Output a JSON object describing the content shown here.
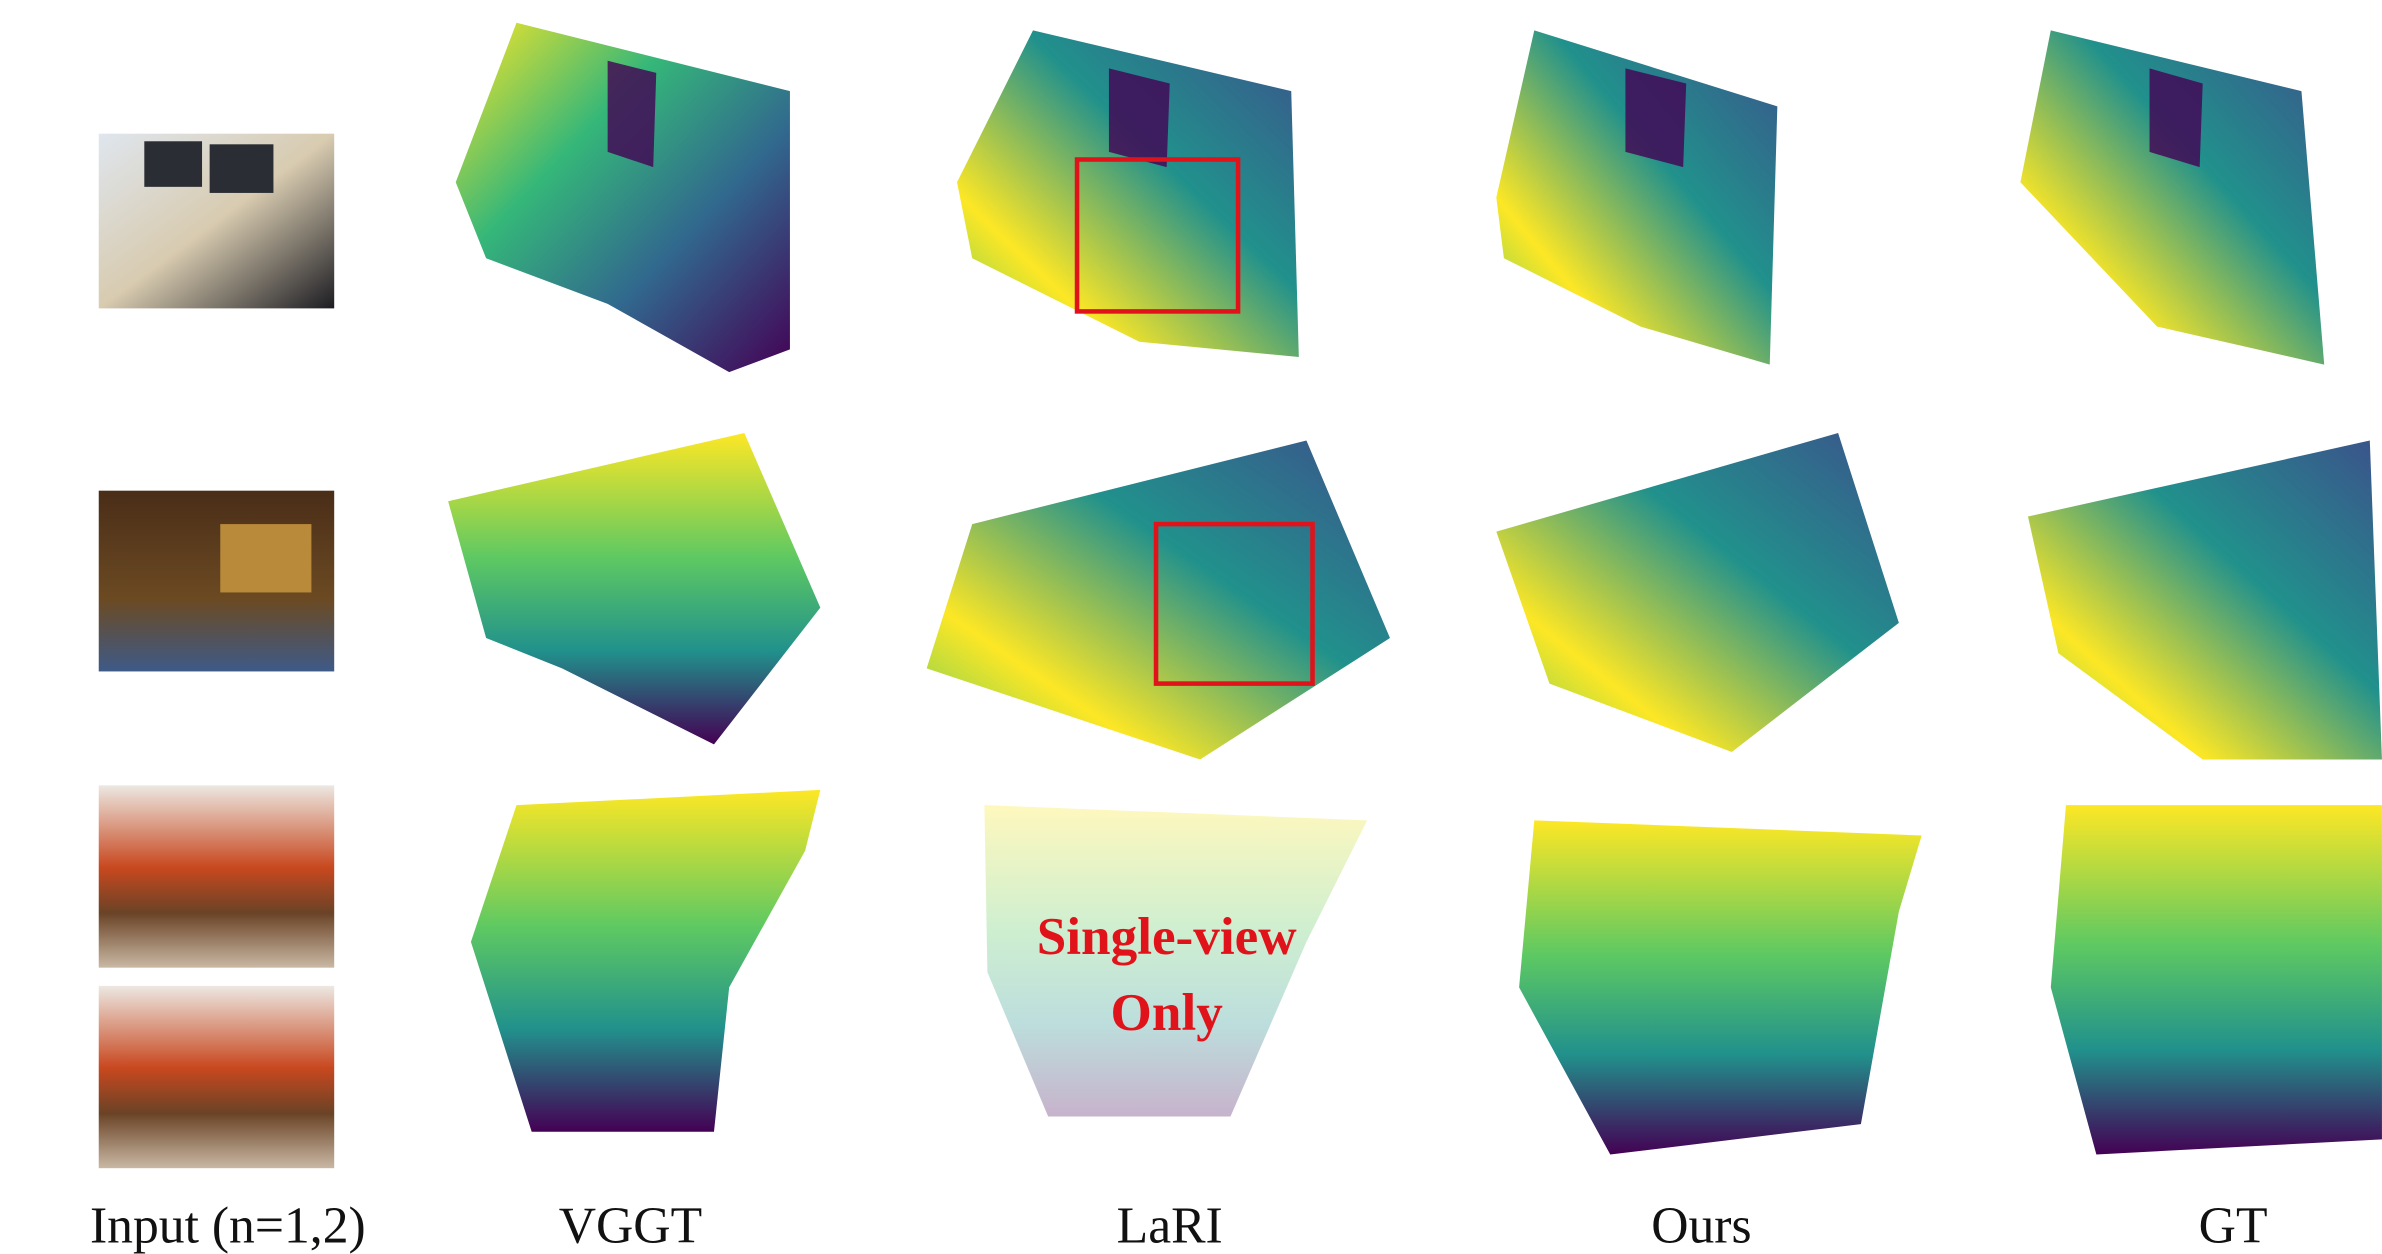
{
  "figure": {
    "columns": [
      "Input (n=1,2)",
      "VGGT",
      "LaRI",
      "Ours",
      "GT"
    ],
    "overlay": [
      "Single-view",
      "Only"
    ]
  }
}
